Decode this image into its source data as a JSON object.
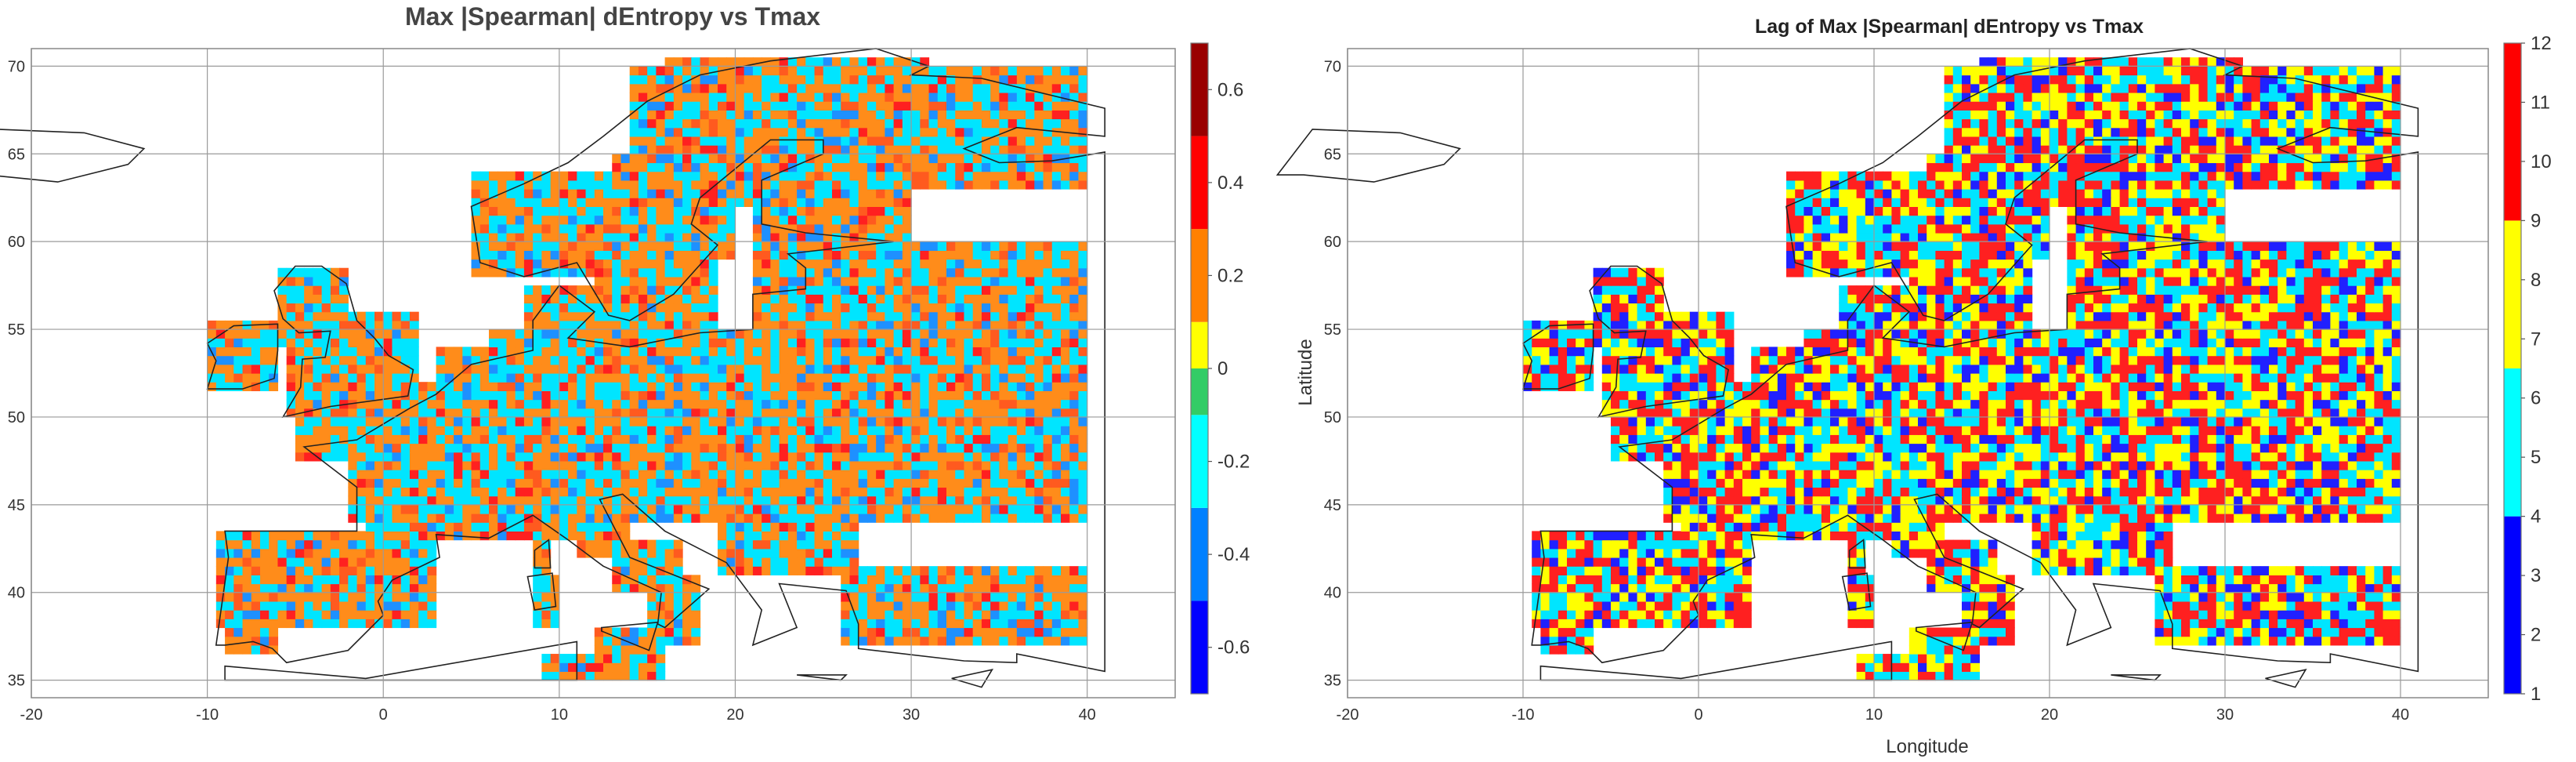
{
  "panels": [
    {
      "id": "left",
      "title": "Max |Spearman| dEntropy vs Tmax",
      "xlabel": "",
      "ylabel": "",
      "xlim": [
        -20,
        45
      ],
      "ylim": [
        34,
        71
      ],
      "xticks": [
        -20,
        -10,
        0,
        10,
        20,
        30,
        40
      ],
      "yticks": [
        35,
        40,
        45,
        50,
        55,
        60,
        65,
        70
      ],
      "colorbar": {
        "range": [
          -0.7,
          0.7
        ],
        "ticks": [
          -0.6,
          -0.4,
          -0.2,
          0,
          0.2,
          0.4,
          0.6
        ],
        "tick_labels": [
          "-0.6",
          "-0.4",
          "-0.2",
          "0",
          "0.2",
          "0.4",
          "0.6"
        ],
        "bands": [
          {
            "from": -0.7,
            "to": -0.5,
            "color": "#0000ff"
          },
          {
            "from": -0.5,
            "to": -0.3,
            "color": "#0080ff"
          },
          {
            "from": -0.3,
            "to": -0.1,
            "color": "#00ffff"
          },
          {
            "from": -0.1,
            "to": 0.0,
            "color": "#33cc66"
          },
          {
            "from": 0.0,
            "to": 0.1,
            "color": "#ffff00"
          },
          {
            "from": 0.1,
            "to": 0.3,
            "color": "#ff8000"
          },
          {
            "from": 0.3,
            "to": 0.5,
            "color": "#ff0000"
          },
          {
            "from": 0.5,
            "to": 0.7,
            "color": "#990000"
          }
        ]
      },
      "palette": [
        "#00e5ff",
        "#1e90ff",
        "#ff8c1a",
        "#ff5a1f",
        "#ff2020"
      ],
      "palette_weights": [
        0.34,
        0.08,
        0.42,
        0.1,
        0.06
      ]
    },
    {
      "id": "right",
      "title": "Lag of Max |Spearman| dEntropy vs Tmax",
      "xlabel": "Longitude",
      "ylabel": "Latitude",
      "xlim": [
        -20,
        45
      ],
      "ylim": [
        34,
        71
      ],
      "xticks": [
        -20,
        -10,
        0,
        10,
        20,
        30,
        40
      ],
      "yticks": [
        35,
        40,
        45,
        50,
        55,
        60,
        65,
        70
      ],
      "colorbar": {
        "range": [
          1,
          12
        ],
        "ticks": [
          1,
          2,
          3,
          4,
          5,
          6,
          7,
          8,
          9,
          10,
          11,
          12
        ],
        "tick_labels": [
          "1",
          "2",
          "3",
          "4",
          "5",
          "6",
          "7",
          "8",
          "9",
          "10",
          "11",
          "12"
        ],
        "bands": [
          {
            "from": 1,
            "to": 4,
            "color": "#0000ff"
          },
          {
            "from": 4,
            "to": 6.5,
            "color": "#00ffff"
          },
          {
            "from": 6.5,
            "to": 9,
            "color": "#ffff00"
          },
          {
            "from": 9,
            "to": 12,
            "color": "#ff0000"
          }
        ]
      },
      "palette": [
        "#ff2020",
        "#ffff00",
        "#00e5ff",
        "#2020ff"
      ],
      "palette_weights": [
        0.33,
        0.27,
        0.27,
        0.13
      ]
    }
  ],
  "land_mask": {
    "rows_lat": [
      [
        35,
        36.5,
        9,
        16
      ],
      [
        36.5,
        38,
        -9,
        -6
      ],
      [
        37,
        41.5,
        26,
        40
      ],
      [
        36,
        38,
        12,
        16
      ],
      [
        38,
        43.5,
        -9.5,
        3
      ],
      [
        38,
        41,
        8.5,
        9.8
      ],
      [
        41,
        43,
        8.5,
        9.5
      ],
      [
        37,
        41,
        15,
        18
      ],
      [
        40,
        43,
        13,
        17
      ],
      [
        42,
        45,
        11,
        14
      ],
      [
        41,
        46,
        19,
        27
      ],
      [
        43,
        46,
        5,
        13
      ],
      [
        43,
        48,
        -1,
        8
      ],
      [
        44,
        52,
        -2,
        40
      ],
      [
        45,
        47,
        28,
        33
      ],
      [
        46,
        55,
        6,
        40
      ],
      [
        47.5,
        51,
        -5,
        2
      ],
      [
        49,
        54,
        3,
        9
      ],
      [
        50,
        56,
        -5.5,
        1.8
      ],
      [
        54,
        58.5,
        -6,
        -2
      ],
      [
        51.5,
        55.5,
        -10,
        -6
      ],
      [
        53.5,
        57.5,
        8,
        13
      ],
      [
        55,
        59.5,
        12,
        19
      ],
      [
        55,
        60,
        21,
        40
      ],
      [
        58,
        64,
        5,
        13
      ],
      [
        59,
        65,
        13,
        20
      ],
      [
        60,
        66,
        21,
        30
      ],
      [
        62,
        70,
        14,
        28
      ],
      [
        63,
        70,
        28,
        40
      ],
      [
        64,
        67,
        30,
        35
      ],
      [
        68.5,
        70.5,
        16,
        31
      ],
      [
        65,
        66,
        -17,
        -13
      ]
    ]
  }
}
